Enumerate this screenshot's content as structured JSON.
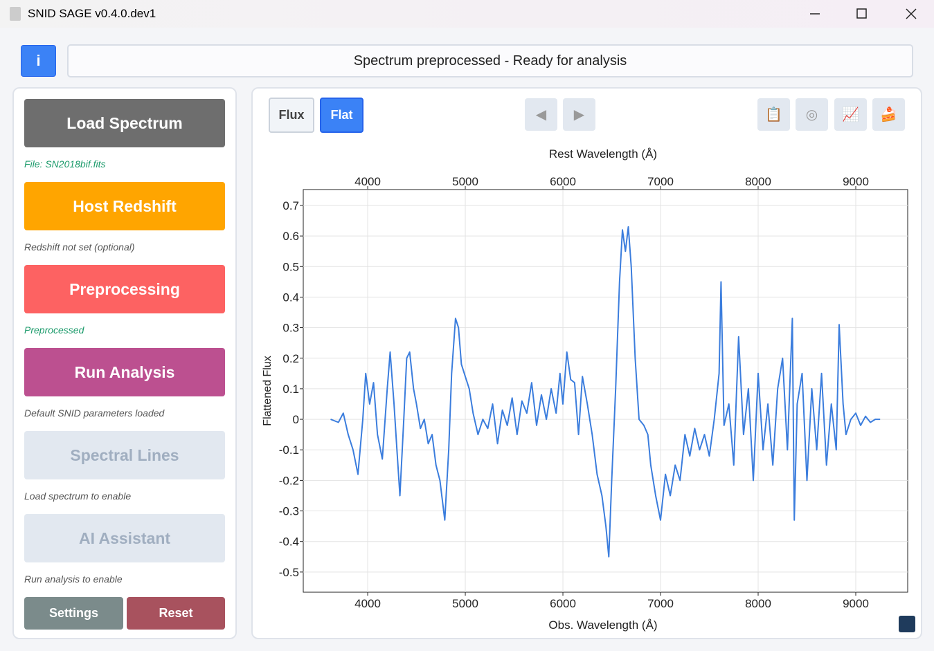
{
  "window": {
    "title": "SNID SAGE v0.4.0.dev1"
  },
  "header": {
    "info_button": "i",
    "status": "Spectrum preprocessed - Ready for analysis"
  },
  "sidebar": {
    "steps": [
      {
        "label": "Load Spectrum",
        "status": "File: SN2018bif.fits"
      },
      {
        "label": "Host Redshift",
        "status": "Redshift not set (optional)"
      },
      {
        "label": "Preprocessing",
        "status": "Preprocessed"
      },
      {
        "label": "Run Analysis",
        "status": "Default SNID parameters loaded"
      },
      {
        "label": "Spectral Lines",
        "status": "Load spectrum to enable"
      },
      {
        "label": "AI Assistant",
        "status": "Run analysis to enable"
      }
    ],
    "settings": "Settings",
    "reset": "Reset"
  },
  "toolbar": {
    "flux": "Flux",
    "flat": "Flat"
  },
  "chart_data": {
    "type": "line",
    "xlabel": "Obs. Wavelength (Å)",
    "x2label": "Rest Wavelength (Å)",
    "ylabel": "Flattened Flux",
    "xlim": [
      3340,
      9532
    ],
    "xticks": [
      4000,
      5000,
      6000,
      7000,
      8000,
      9000
    ],
    "x2lim": [
      3340,
      9532
    ],
    "x2ticks": [
      4000,
      5000,
      6000,
      7000,
      8000,
      9000
    ],
    "ylim": [
      -0.566,
      0.752
    ],
    "yticks": [
      0.7,
      0.6,
      0.5,
      0.4,
      0.3,
      0.2,
      0.1,
      0,
      -0.1,
      -0.2,
      -0.3,
      -0.4,
      -0.5
    ],
    "grid": true,
    "x": [
      3620,
      3700,
      3750,
      3800,
      3850,
      3900,
      3950,
      3980,
      4020,
      4060,
      4100,
      4150,
      4200,
      4230,
      4270,
      4300,
      4330,
      4370,
      4400,
      4430,
      4470,
      4500,
      4540,
      4580,
      4620,
      4660,
      4700,
      4740,
      4790,
      4830,
      4860,
      4900,
      4930,
      4960,
      5000,
      5040,
      5080,
      5130,
      5180,
      5230,
      5280,
      5330,
      5380,
      5430,
      5480,
      5530,
      5580,
      5630,
      5680,
      5730,
      5780,
      5830,
      5880,
      5930,
      5970,
      6000,
      6040,
      6080,
      6120,
      6160,
      6200,
      6250,
      6300,
      6350,
      6400,
      6440,
      6470,
      6500,
      6540,
      6580,
      6610,
      6640,
      6670,
      6700,
      6740,
      6780,
      6830,
      6870,
      6900,
      6950,
      7000,
      7050,
      7100,
      7150,
      7200,
      7250,
      7300,
      7350,
      7400,
      7450,
      7500,
      7550,
      7600,
      7620,
      7650,
      7700,
      7750,
      7800,
      7850,
      7900,
      7950,
      8000,
      8050,
      8100,
      8150,
      8200,
      8250,
      8300,
      8350,
      8370,
      8400,
      8450,
      8500,
      8550,
      8600,
      8650,
      8700,
      8750,
      8800,
      8830,
      8870,
      8900,
      8950,
      9000,
      9050,
      9100,
      9150,
      9200,
      9250
    ],
    "series": [
      {
        "name": "Flattened Flux",
        "color": "#3b7ddd",
        "values": [
          0,
          -0.01,
          0.02,
          -0.05,
          -0.1,
          -0.18,
          0,
          0.15,
          0.05,
          0.12,
          -0.05,
          -0.13,
          0.1,
          0.22,
          0.05,
          -0.1,
          -0.25,
          0,
          0.2,
          0.22,
          0.1,
          0.05,
          -0.03,
          0,
          -0.08,
          -0.05,
          -0.15,
          -0.2,
          -0.33,
          -0.1,
          0.15,
          0.33,
          0.3,
          0.18,
          0.14,
          0.1,
          0.02,
          -0.05,
          0,
          -0.03,
          0.05,
          -0.08,
          0.03,
          -0.02,
          0.07,
          -0.05,
          0.06,
          0.02,
          0.12,
          -0.02,
          0.08,
          0,
          0.1,
          0.02,
          0.15,
          0.05,
          0.22,
          0.13,
          0.12,
          -0.05,
          0.14,
          0.05,
          -0.05,
          -0.18,
          -0.25,
          -0.35,
          -0.45,
          -0.2,
          0.1,
          0.45,
          0.62,
          0.55,
          0.63,
          0.5,
          0.2,
          0,
          -0.02,
          -0.05,
          -0.15,
          -0.25,
          -0.33,
          -0.18,
          -0.25,
          -0.15,
          -0.2,
          -0.05,
          -0.12,
          -0.03,
          -0.1,
          -0.05,
          -0.12,
          0,
          0.15,
          0.45,
          -0.02,
          0.05,
          -0.15,
          0.27,
          -0.05,
          0.1,
          -0.2,
          0.15,
          -0.1,
          0.05,
          -0.15,
          0.1,
          0.2,
          -0.1,
          0.33,
          -0.33,
          0.05,
          0.15,
          -0.2,
          0.1,
          -0.1,
          0.15,
          -0.15,
          0.05,
          -0.1,
          0.31,
          0.05,
          -0.05,
          0,
          0.02,
          -0.02,
          0.01,
          -0.01,
          0,
          0
        ]
      }
    ]
  }
}
